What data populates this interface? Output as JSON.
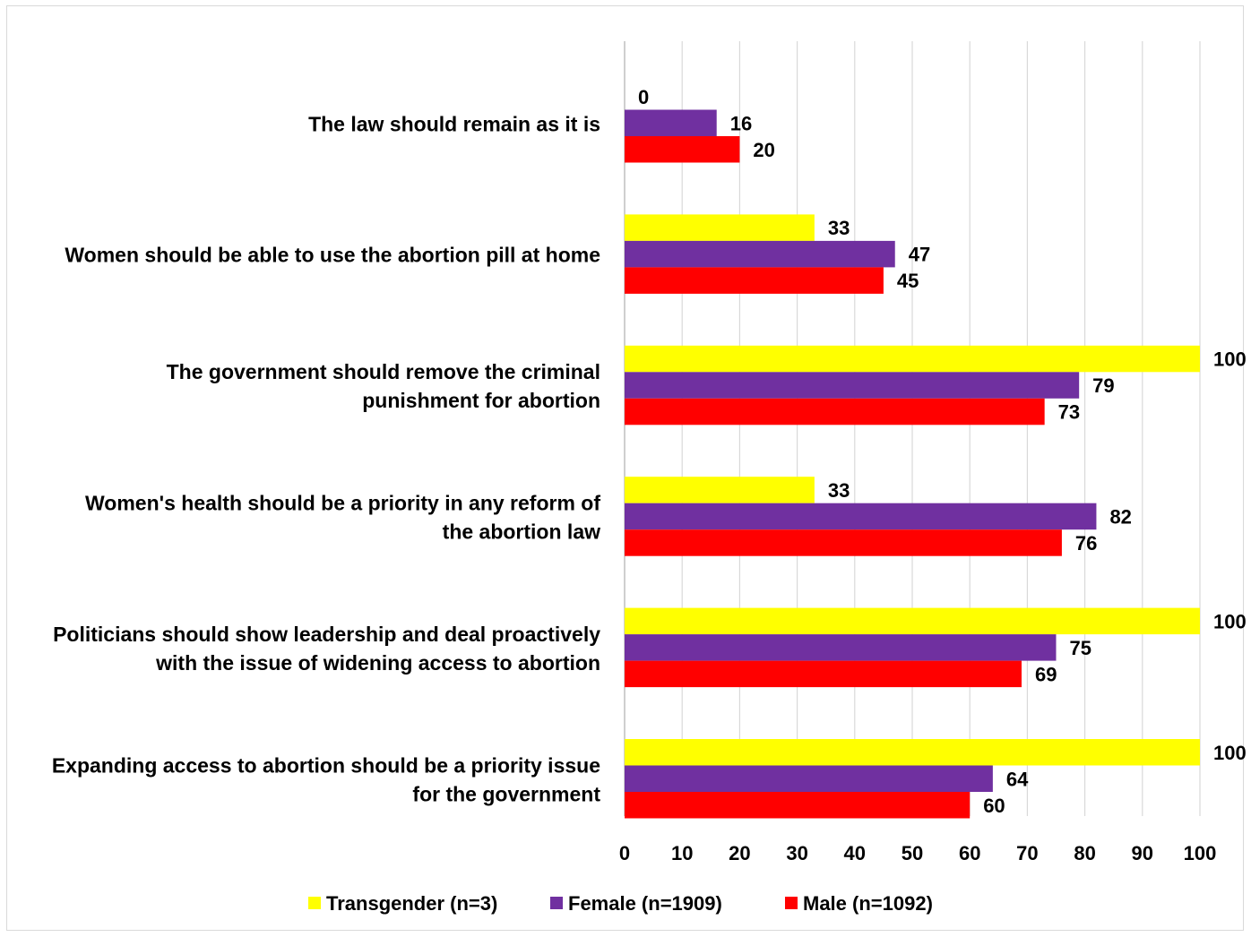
{
  "chart_data": {
    "type": "bar",
    "orientation": "horizontal",
    "categories": [
      [
        "The law should remain as it is"
      ],
      [
        "Women should be able to use the abortion pill at home"
      ],
      [
        "The government should remove the criminal",
        "punishment for abortion"
      ],
      [
        "Women's health should be a priority in any reform of",
        "the abortion law"
      ],
      [
        "Politicians should show leadership and deal proactively",
        "with the issue of widening access to abortion"
      ],
      [
        "Expanding access to abortion should be a priority issue",
        "for the government"
      ]
    ],
    "series": [
      {
        "name": "Transgender (n=3)",
        "color": "#FFFF00",
        "values": [
          0,
          33,
          100,
          33,
          100,
          100
        ]
      },
      {
        "name": "Female (n=1909)",
        "color": "#7030A0",
        "values": [
          16,
          47,
          79,
          82,
          75,
          64
        ]
      },
      {
        "name": "Male (n=1092)",
        "color": "#FF0000",
        "values": [
          20,
          45,
          73,
          76,
          69,
          60
        ]
      }
    ],
    "xlim": [
      0,
      100
    ],
    "xticks": [
      0,
      10,
      20,
      30,
      40,
      50,
      60,
      70,
      80,
      90,
      100
    ],
    "grid": true,
    "legend": "bottom"
  }
}
